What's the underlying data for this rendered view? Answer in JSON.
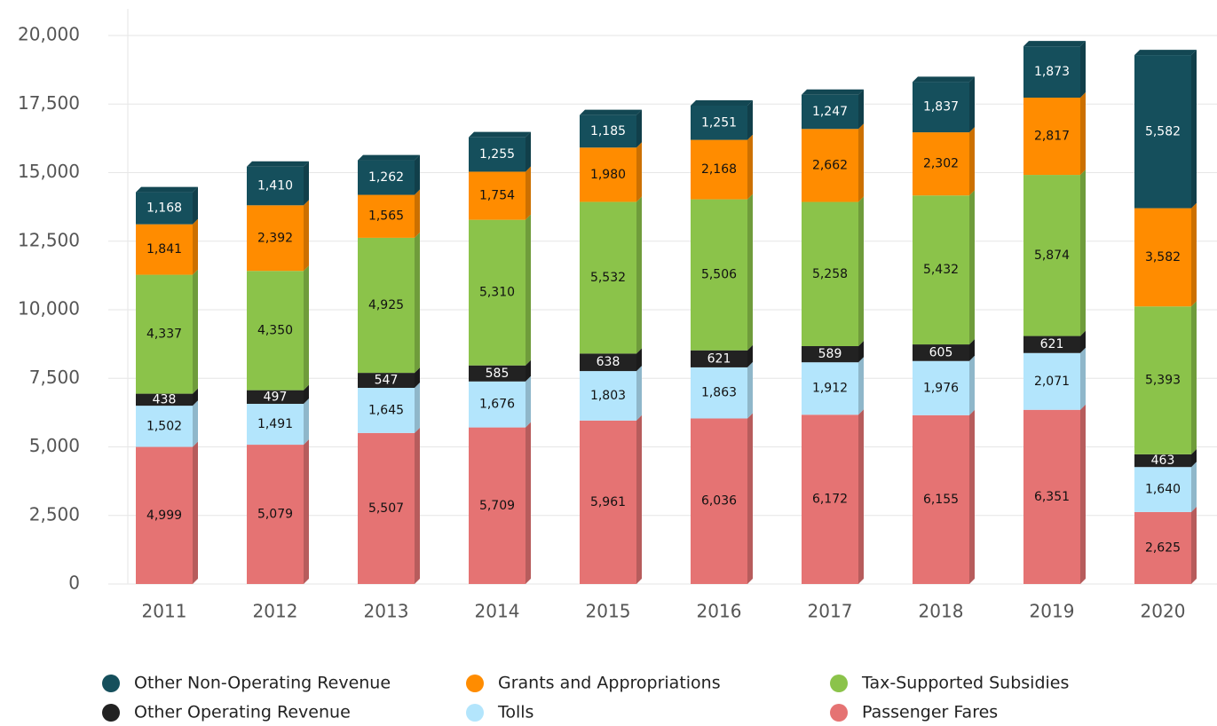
{
  "chart_data": {
    "type": "bar",
    "stacked": true,
    "categories": [
      "2011",
      "2012",
      "2013",
      "2014",
      "2015",
      "2016",
      "2017",
      "2018",
      "2019",
      "2020"
    ],
    "series": [
      {
        "name": "Other Non-Operating Revenue",
        "color": "#154f5c",
        "values": [
          1168,
          1410,
          1262,
          1255,
          1185,
          1251,
          1247,
          1837,
          1873,
          5582
        ],
        "value_labels": [
          "1,168",
          "1,410",
          "1,262",
          "1,255",
          "1,185",
          "1,251",
          "1,247",
          "1,837",
          "1,873",
          "5,582"
        ]
      },
      {
        "name": "Grants and Appropriations",
        "color": "#ff8c00",
        "values": [
          1841,
          2392,
          1565,
          1754,
          1980,
          2168,
          2662,
          2302,
          2817,
          3582
        ],
        "value_labels": [
          "1,841",
          "2,392",
          "1,565",
          "1,754",
          "1,980",
          "2,168",
          "2,662",
          "2,302",
          "2,817",
          "3,582"
        ]
      },
      {
        "name": "Tax-Supported Subsidies",
        "color": "#8bc34a",
        "values": [
          4337,
          4350,
          4925,
          5310,
          5532,
          5506,
          5258,
          5432,
          5874,
          5393
        ],
        "value_labels": [
          "4,337",
          "4,350",
          "4,925",
          "5,310",
          "5,532",
          "5,506",
          "5,258",
          "5,432",
          "5,874",
          "5,393"
        ]
      },
      {
        "name": "Other Operating Revenue",
        "color": "#222222",
        "values": [
          438,
          497,
          547,
          585,
          638,
          621,
          589,
          605,
          621,
          463
        ]
      },
      {
        "name": "Tolls",
        "color": "#b3e5fc",
        "values": [
          1502,
          1491,
          1645,
          1676,
          1803,
          1863,
          1912,
          1976,
          2071,
          1640
        ],
        "value_labels": [
          "1,502",
          "1,491",
          "1,645",
          "1,676",
          "1,803",
          "1,863",
          "1,912",
          "1,976",
          "2,071",
          "1,640"
        ]
      },
      {
        "name": "Passenger Fares",
        "color": "#e57373",
        "values": [
          4999,
          5079,
          5507,
          5709,
          5961,
          6036,
          6172,
          6155,
          6351,
          2625
        ],
        "value_labels": [
          "4,999",
          "5,079",
          "5,507",
          "5,709",
          "5,961",
          "6,036",
          "6,172",
          "6,155",
          "6,351",
          "2,625"
        ]
      }
    ],
    "ylim": [
      0,
      20000
    ],
    "yticks": [
      0,
      {
        "value": 2500,
        "label": "2,500"
      },
      {
        "value": 5000,
        "label": "5,000"
      },
      {
        "value": 7500,
        "label": "7,500"
      },
      {
        "value": 10000,
        "label": "10,000"
      },
      {
        "value": 12500,
        "label": "12,500"
      },
      {
        "value": 15000,
        "label": "15,000"
      },
      {
        "value": 17500,
        "label": "17,500"
      },
      {
        "value": 20000,
        "label": "20,000"
      }
    ],
    "grid": true,
    "legend": "bottom"
  }
}
